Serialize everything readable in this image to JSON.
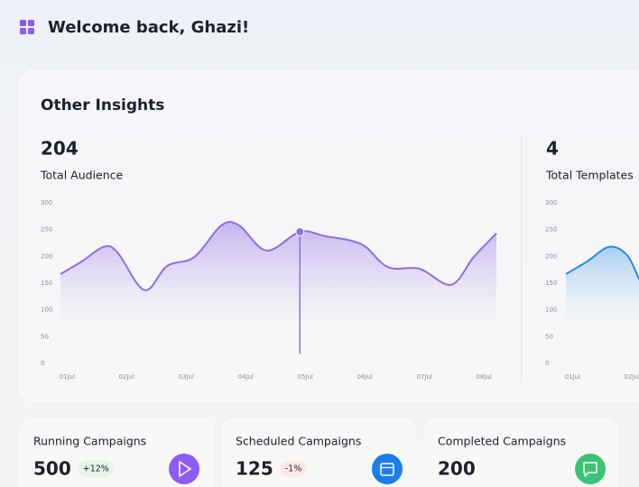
{
  "header": {
    "title": "Welcome back, Ghazi!"
  },
  "insights": {
    "title": "Other Insights",
    "charts": [
      {
        "type": "line",
        "value": 204,
        "label": "Total Audience",
        "color": "#8e6fe0",
        "x": [
          0.89,
          1.24,
          1.62,
          1.85,
          2.3,
          2.68,
          3.14,
          3.59,
          3.89,
          4.35,
          4.91,
          5.33,
          5.94,
          6.39,
          6.92,
          7.45,
          7.83,
          8.21
        ],
        "values": [
          167,
          190,
          218,
          207,
          137,
          182,
          199,
          258,
          258,
          211,
          246,
          238,
          223,
          180,
          177,
          147,
          199,
          243
        ],
        "highlight": 10,
        "xlim": [
          0.89,
          8.21
        ],
        "ylim": [
          0,
          300
        ],
        "yticks": [
          0,
          50,
          100,
          150,
          200,
          250,
          300
        ],
        "xticks": [
          {
            "value": 1,
            "label": "01Jul"
          },
          {
            "value": 2,
            "label": "02Jul"
          },
          {
            "value": 3,
            "label": "03Jul"
          },
          {
            "value": 4,
            "label": "04Jul"
          },
          {
            "value": 5,
            "label": "05Jul"
          },
          {
            "value": 6,
            "label": "06Jul"
          },
          {
            "value": 7,
            "label": "07Jul"
          },
          {
            "value": 8,
            "label": "08Jul"
          }
        ]
      },
      {
        "type": "line",
        "value": 4,
        "label": "Total Templates",
        "color": "#2b8ae0",
        "x": [
          0.89,
          1.24,
          1.62,
          1.92,
          2.12
        ],
        "values": [
          167,
          190,
          218,
          202,
          157
        ],
        "xlim": [
          0.89,
          8.21
        ],
        "ylim": [
          0,
          300
        ],
        "yticks": [
          0,
          50,
          100,
          150,
          200,
          250,
          300
        ],
        "xticks": [
          {
            "value": 1,
            "label": "01Jul"
          },
          {
            "value": 2,
            "label": "02Jul"
          }
        ]
      }
    ]
  },
  "stats": [
    {
      "label": "Running Campaigns",
      "value": 500,
      "change": "+12%",
      "trend": "up"
    },
    {
      "label": "Scheduled Campaigns",
      "value": 125,
      "change": "-1%",
      "trend": "down"
    },
    {
      "label": "Completed Campaigns",
      "value": 200
    }
  ]
}
